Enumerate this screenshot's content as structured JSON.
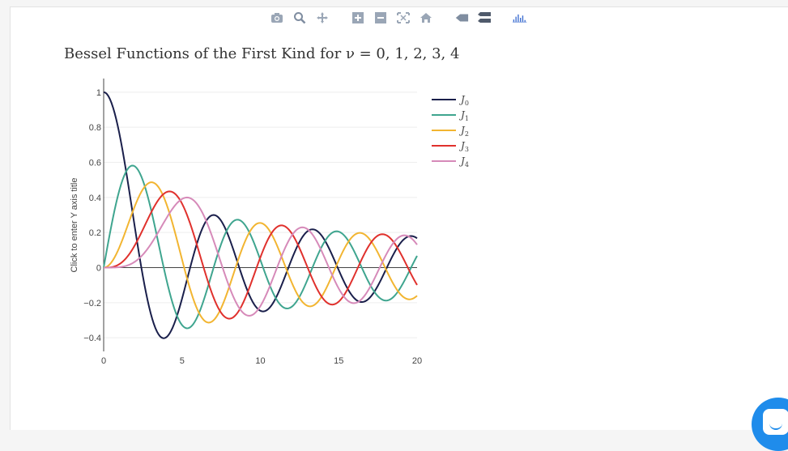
{
  "title": "Bessel Functions of the First Kind for ν = 0, 1, 2, 3, 4",
  "y_axis_title": "Click to enter Y axis title",
  "modebar": {
    "icons": [
      "camera-icon",
      "zoom-icon",
      "pan-icon",
      "zoom-in-icon",
      "zoom-out-icon",
      "autoscale-icon",
      "home-icon",
      "spike-icon",
      "compare-icon",
      "plotly-logo-icon"
    ]
  },
  "chart_data": {
    "type": "line",
    "title": "Bessel Functions of the First Kind for ν = 0, 1, 2, 3, 4",
    "xlabel": "",
    "ylabel": "Click to enter Y axis title",
    "xlim": [
      0,
      20
    ],
    "ylim": [
      -0.45,
      1.05
    ],
    "x_ticks": [
      "0",
      "5",
      "10",
      "15",
      "20"
    ],
    "y_ticks": [
      "−0.4",
      "−0.2",
      "0",
      "0.2",
      "0.4",
      "0.6",
      "0.8",
      "1"
    ],
    "y_tick_values": [
      -0.4,
      -0.2,
      0,
      0.2,
      0.4,
      0.6,
      0.8,
      1
    ],
    "x_tick_values": [
      0,
      5,
      10,
      15,
      20
    ],
    "grid": true,
    "legend_position": "right",
    "sampling": {
      "x_start": 0,
      "x_end": 20,
      "points": 201
    },
    "series": [
      {
        "name": "J0",
        "order": 0,
        "color": "#1a1f4b"
      },
      {
        "name": "J1",
        "order": 1,
        "color": "#3fa58f"
      },
      {
        "name": "J2",
        "order": 2,
        "color": "#f2b531"
      },
      {
        "name": "J3",
        "order": 3,
        "color": "#e0312d"
      },
      {
        "name": "J4",
        "order": 4,
        "color": "#d68ab9"
      }
    ]
  }
}
